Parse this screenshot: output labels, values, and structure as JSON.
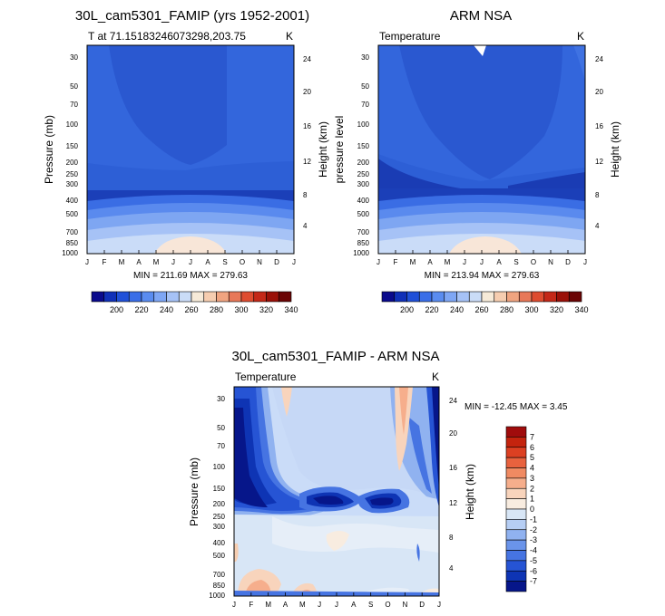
{
  "chart_data": [
    {
      "type": "heatmap",
      "id": "model",
      "title": "30L_cam5301_FAMIP (yrs 1952-2001)",
      "subtitle_left": "T at 71.15183246073298,203.75",
      "subtitle_right": "K",
      "ylabel": "Pressure (mb)",
      "y2label": "Height (km)",
      "xticks": [
        "J",
        "F",
        "M",
        "A",
        "M",
        "J",
        "J",
        "A",
        "S",
        "O",
        "N",
        "D",
        "J"
      ],
      "yticks": [
        "30",
        "50",
        "70",
        "100",
        "150",
        "200",
        "250",
        "300",
        "400",
        "500",
        "700",
        "850",
        "1000"
      ],
      "yticks_right": [
        "24",
        "20",
        "16",
        "12",
        "8",
        "4"
      ],
      "footer": "MIN = 211.69 MAX = 279.63",
      "min": 211.69,
      "max": 279.63
    },
    {
      "type": "heatmap",
      "id": "obs",
      "title": "ARM NSA",
      "subtitle_left": "Temperature",
      "subtitle_right": "K",
      "ylabel": "pressure level",
      "y2label": "Height (km)",
      "xticks": [
        "J",
        "F",
        "M",
        "A",
        "M",
        "J",
        "J",
        "A",
        "S",
        "O",
        "N",
        "D",
        "J"
      ],
      "yticks": [
        "30",
        "50",
        "70",
        "100",
        "150",
        "200",
        "250",
        "300",
        "400",
        "500",
        "700",
        "850",
        "1000"
      ],
      "yticks_right": [
        "24",
        "20",
        "16",
        "12",
        "8",
        "4"
      ],
      "footer": "MIN = 213.94 MAX = 279.63",
      "min": 213.94,
      "max": 279.63
    },
    {
      "type": "heatmap",
      "id": "diff",
      "title": "30L_cam5301_FAMIP - ARM NSA",
      "subtitle_left": "Temperature",
      "subtitle_right": "K",
      "ylabel": "Pressure (mb)",
      "y2label": "Height (km)",
      "xticks": [
        "J",
        "F",
        "M",
        "A",
        "M",
        "J",
        "J",
        "A",
        "S",
        "O",
        "N",
        "D",
        "J"
      ],
      "yticks": [
        "30",
        "50",
        "70",
        "100",
        "150",
        "200",
        "250",
        "300",
        "400",
        "500",
        "700",
        "850",
        "1000"
      ],
      "yticks_right": [
        "24",
        "20",
        "16",
        "12",
        "8",
        "4"
      ],
      "minmax_text": "MIN = -12.45 MAX =   3.45",
      "min": -12.45,
      "max": 3.45
    }
  ],
  "colorbar_temp": {
    "labels": [
      "200",
      "220",
      "240",
      "260",
      "280",
      "300",
      "320",
      "340"
    ],
    "colors": [
      "#0a0a8c",
      "#1030b8",
      "#2050d8",
      "#3a6ee8",
      "#5a8cf0",
      "#7ea6f4",
      "#a6c2f6",
      "#cadcf7",
      "#f6ead8",
      "#f6cdb0",
      "#f0a480",
      "#e87858",
      "#de4c30",
      "#c42818",
      "#9a1008",
      "#6a0404"
    ]
  },
  "colorbar_diff": {
    "labels": [
      "7",
      "6",
      "5",
      "4",
      "3",
      "2",
      "1",
      "0",
      "-1",
      "-2",
      "-3",
      "-4",
      "-5",
      "-6",
      "-7"
    ],
    "colors": [
      "#a00c0c",
      "#c4240e",
      "#dc4022",
      "#e8623e",
      "#f08a62",
      "#f6ae8c",
      "#f8d4bc",
      "#f8ece0",
      "#d8e6f6",
      "#b6cef4",
      "#90b2f0",
      "#6a94ea",
      "#4674e2",
      "#2654d4",
      "#0e34b4",
      "#06168a"
    ]
  },
  "palette": {
    "deep": "#0c1e8c",
    "dark": "#1434c4",
    "mid": "#2a5ad8",
    "lmid": "#4a7ce8",
    "light": "#7aa2f0",
    "pale": "#a8c4f4",
    "paler": "#cadcf8",
    "warm": "#f8e6d8",
    "warm2": "#f4d4bc"
  }
}
